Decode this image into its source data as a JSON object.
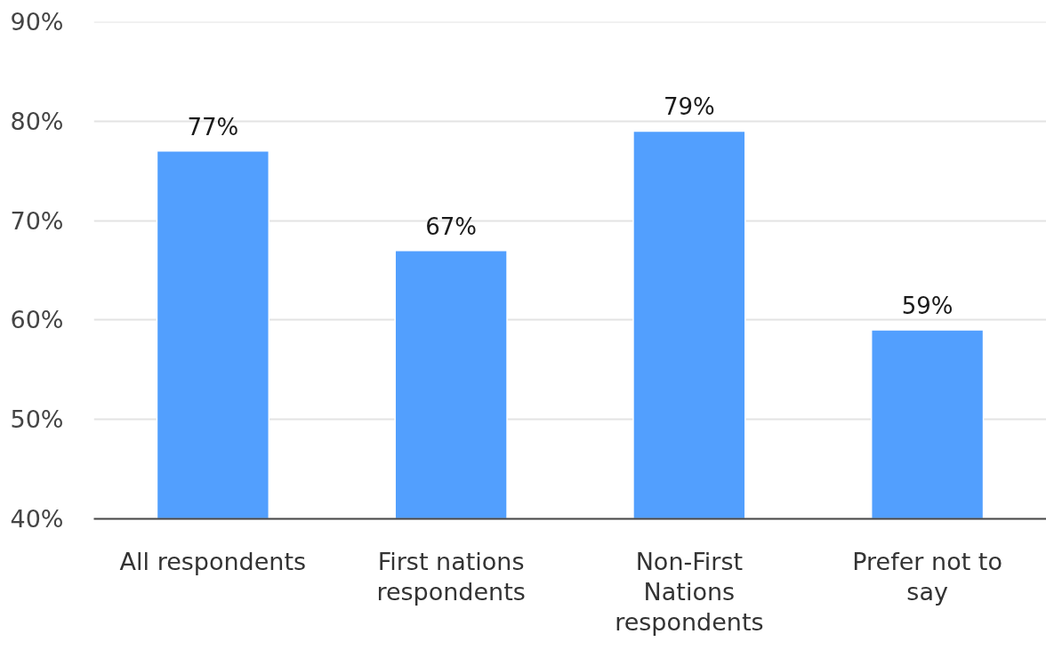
{
  "chart_data": {
    "type": "bar",
    "categories": [
      "All respondents",
      "First nations respondents",
      "Non-First Nations respondents",
      "Prefer not to say"
    ],
    "values": [
      77,
      67,
      79,
      59
    ],
    "color": "#529ffe",
    "value_labels": [
      "77%",
      "67%",
      "79%",
      "59%"
    ],
    "ylim": [
      40,
      90
    ],
    "yticks": [
      {
        "value": 40,
        "label": "40%"
      },
      {
        "value": 50,
        "label": "50%"
      },
      {
        "value": 60,
        "label": "60%"
      },
      {
        "value": 70,
        "label": "70%"
      },
      {
        "value": 80,
        "label": "80%"
      },
      {
        "value": 90,
        "label": "90%"
      }
    ],
    "grid": "y"
  }
}
